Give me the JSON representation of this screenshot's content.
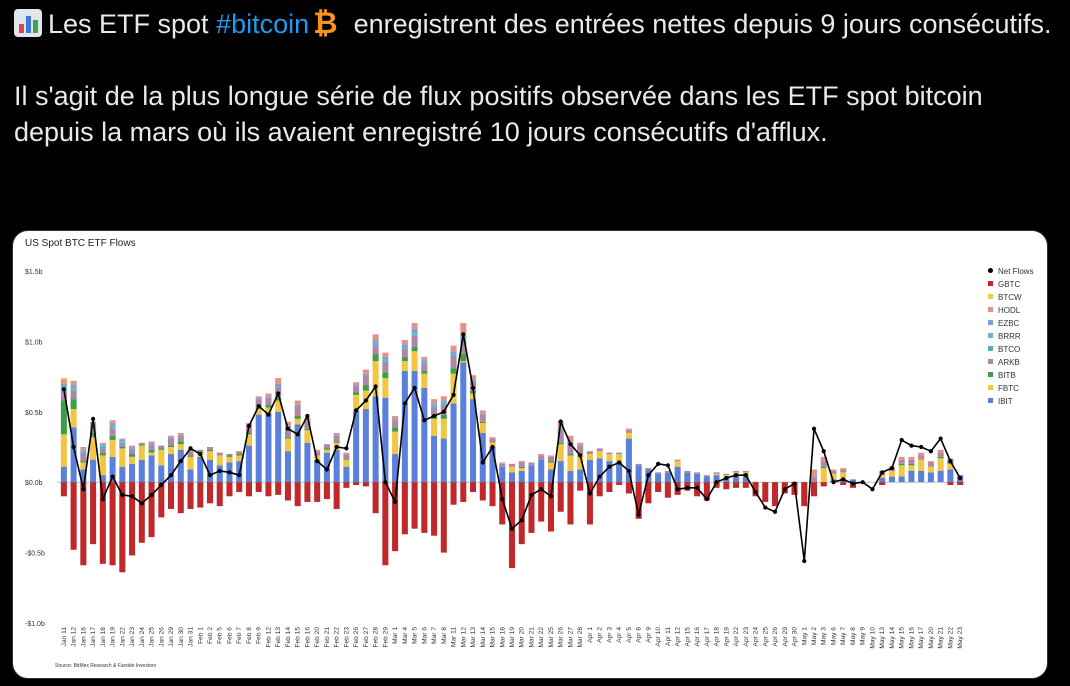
{
  "tweet": {
    "line1_a": "Les ETF spot ",
    "hashtag": "#bitcoin",
    "line1_b": "enregistrent des entrées nettes depuis 9 jours consécutifs.",
    "line2": "Il s'agit de la plus longue série de flux positifs observée dans les ETF spot bitcoin depuis la mars où ils avaient enregistré 10 jours consécutifs d'afflux.",
    "btc_glyph": "₿",
    "chart_icon": "bar-chart-emoji"
  },
  "chart_data": {
    "type": "bar",
    "title": "US Spot BTC ETF Flows",
    "source": "Source: BitMex Research & Farside Investors",
    "ylim": [
      -1.0,
      1.5
    ],
    "yticks": [
      {
        "v": 1.5,
        "label": "$1.5b"
      },
      {
        "v": 1.0,
        "label": "$1.0b"
      },
      {
        "v": 0.5,
        "label": "$0.5b"
      },
      {
        "v": 0.0,
        "label": "$0.0b"
      },
      {
        "v": -0.5,
        "label": "-$0.5b"
      },
      {
        "v": -1.0,
        "label": "-$1.0b"
      }
    ],
    "legend_position": "right",
    "grid": false,
    "colors": {
      "GBTC": "#c0282a",
      "BTCW": "#e8d04a",
      "HODL": "#e49188",
      "EZBC": "#7f9ed8",
      "BRRR": "#63b8c9",
      "BTCO": "#4eaec0",
      "ARKB": "#b086a6",
      "BITB": "#3f9e4a",
      "FBTC": "#f2c641",
      "IBIT": "#5b80dc",
      "Net": "#000000"
    },
    "legend": [
      "Net Flows",
      "GBTC",
      "BTCW",
      "HODL",
      "EZBC",
      "BRRR",
      "BTCO",
      "ARKB",
      "BITB",
      "FBTC",
      "IBIT"
    ],
    "dates": [
      "Jan 11",
      "Jan 12",
      "Jan 16",
      "Jan 17",
      "Jan 18",
      "Jan 19",
      "Jan 22",
      "Jan 23",
      "Jan 24",
      "Jan 25",
      "Jan 26",
      "Jan 29",
      "Jan 30",
      "Jan 31",
      "Feb 1",
      "Feb 2",
      "Feb 5",
      "Feb 6",
      "Feb 7",
      "Feb 8",
      "Feb 9",
      "Feb 12",
      "Feb 13",
      "Feb 14",
      "Feb 15",
      "Feb 16",
      "Feb 20",
      "Feb 21",
      "Feb 22",
      "Feb 23",
      "Feb 26",
      "Feb 27",
      "Feb 28",
      "Feb 29",
      "Mar 1",
      "Mar 4",
      "Mar 5",
      "Mar 6",
      "Mar 7",
      "Mar 8",
      "Mar 11",
      "Mar 12",
      "Mar 13",
      "Mar 14",
      "Mar 15",
      "Mar 18",
      "Mar 19",
      "Mar 20",
      "Mar 21",
      "Mar 22",
      "Mar 25",
      "Mar 26",
      "Mar 27",
      "Mar 28",
      "Apr 1",
      "Apr 2",
      "Apr 3",
      "Apr 4",
      "Apr 5",
      "Apr 8",
      "Apr 9",
      "Apr 10",
      "Apr 11",
      "Apr 12",
      "Apr 15",
      "Apr 16",
      "Apr 17",
      "Apr 18",
      "Apr 19",
      "Apr 22",
      "Apr 23",
      "Apr 24",
      "Apr 25",
      "Apr 26",
      "Apr 29",
      "Apr 30",
      "May 1",
      "May 2",
      "May 3",
      "May 6",
      "May 7",
      "May 8",
      "May 9",
      "May 10",
      "May 13",
      "May 14",
      "May 15",
      "May 16",
      "May 17",
      "May 20",
      "May 21",
      "May 22",
      "May 23"
    ],
    "series": [
      {
        "name": "IBIT",
        "values": [
          0.11,
          0.39,
          0.09,
          0.16,
          0.05,
          0.18,
          0.11,
          0.13,
          0.16,
          0.19,
          0.12,
          0.2,
          0.23,
          0.09,
          0.18,
          0.16,
          0.12,
          0.14,
          0.15,
          0.26,
          0.48,
          0.49,
          0.5,
          0.22,
          0.41,
          0.28,
          0.16,
          0.21,
          0.23,
          0.11,
          0.51,
          0.52,
          0.61,
          0.6,
          0.2,
          0.79,
          0.79,
          0.67,
          0.33,
          0.31,
          0.56,
          0.85,
          0.59,
          0.35,
          0.25,
          0.11,
          0.07,
          0.08,
          0.12,
          0.16,
          0.09,
          0.15,
          0.08,
          0.09,
          0.16,
          0.17,
          0.15,
          0.14,
          0.31,
          0.12,
          0.09,
          0.06,
          0.07,
          0.11,
          0.07,
          0.06,
          0.04,
          0.05,
          0.03,
          0.04,
          0.04,
          0.0,
          0.0,
          0.0,
          0.0,
          0.0,
          0.0,
          0.0,
          0.0,
          0.02,
          0.02,
          0.02,
          0.0,
          0.0,
          0.03,
          0.04,
          0.04,
          0.08,
          0.08,
          0.07,
          0.08,
          0.09,
          0.05
        ]
      },
      {
        "name": "FBTC",
        "values": [
          0.23,
          0.13,
          0.05,
          0.16,
          0.14,
          0.12,
          0.13,
          0.05,
          0.1,
          0.02,
          0.11,
          0.05,
          0.04,
          0.09,
          0.03,
          0.06,
          0.07,
          0.04,
          0.04,
          0.08,
          0.04,
          0.04,
          0.08,
          0.09,
          0.04,
          0.09,
          0.03,
          0.02,
          0.05,
          0.05,
          0.11,
          0.13,
          0.25,
          0.14,
          0.16,
          0.07,
          0.14,
          0.1,
          0.12,
          0.14,
          0.21,
          0.01,
          0.04,
          0.07,
          0.03,
          0.0,
          0.04,
          0.02,
          0.0,
          0.0,
          0.05,
          0.12,
          0.11,
          0.11,
          0.04,
          0.05,
          0.05,
          0.06,
          0.04,
          0.0,
          0.0,
          0.0,
          0.0,
          0.04,
          0.0,
          0.0,
          0.0,
          0.01,
          0.02,
          0.03,
          0.03,
          0.0,
          0.0,
          0.0,
          0.0,
          0.0,
          0.0,
          0.0,
          0.1,
          0.04,
          0.05,
          0.0,
          0.0,
          0.0,
          0.02,
          0.04,
          0.08,
          0.04,
          0.08,
          0.04,
          0.09,
          0.04,
          0.0
        ]
      },
      {
        "name": "BITB",
        "values": [
          0.24,
          0.07,
          0.01,
          0.03,
          0.02,
          0.03,
          0.01,
          0.02,
          0.01,
          0.02,
          0.01,
          0.01,
          0.02,
          0.01,
          0.01,
          0.01,
          0.0,
          0.01,
          0.01,
          0.01,
          0.01,
          0.02,
          0.02,
          0.01,
          0.02,
          0.01,
          0.0,
          0.01,
          0.01,
          0.01,
          0.02,
          0.04,
          0.05,
          0.04,
          0.03,
          0.03,
          0.03,
          0.02,
          0.02,
          0.03,
          0.04,
          0.05,
          0.02,
          0.01,
          0.0,
          0.0,
          0.0,
          0.01,
          0.0,
          0.0,
          0.01,
          0.01,
          0.01,
          0.01,
          0.0,
          0.0,
          0.0,
          0.0,
          0.0,
          0.0,
          0.0,
          0.0,
          0.0,
          0.0,
          0.0,
          0.0,
          0.0,
          0.0,
          0.0,
          0.0,
          0.0,
          0.0,
          0.0,
          0.0,
          0.0,
          0.0,
          0.0,
          0.0,
          0.01,
          0.0,
          0.0,
          0.0,
          0.0,
          0.0,
          0.0,
          0.0,
          0.01,
          0.01,
          0.0,
          0.0,
          0.01,
          0.01,
          0.0
        ]
      },
      {
        "name": "ARKB",
        "values": [
          0.07,
          0.06,
          0.05,
          0.04,
          0.03,
          0.05,
          0.02,
          0.03,
          0.01,
          0.04,
          0.02,
          0.05,
          0.04,
          0.03,
          0.01,
          0.02,
          0.02,
          0.01,
          0.02,
          0.06,
          0.06,
          0.05,
          0.08,
          0.07,
          0.07,
          0.05,
          0.03,
          0.03,
          0.04,
          0.03,
          0.04,
          0.07,
          0.06,
          0.07,
          0.05,
          0.05,
          0.08,
          0.05,
          0.06,
          0.07,
          0.08,
          0.09,
          0.06,
          0.05,
          0.03,
          0.02,
          0.02,
          0.03,
          0.02,
          0.03,
          0.03,
          0.09,
          0.08,
          0.05,
          0.02,
          0.02,
          0.01,
          0.01,
          0.02,
          0.01,
          0.01,
          0.01,
          0.01,
          0.01,
          0.01,
          0.01,
          0.01,
          0.01,
          0.01,
          0.01,
          0.01,
          0.0,
          0.0,
          0.0,
          0.0,
          0.0,
          0.0,
          0.04,
          0.04,
          0.02,
          0.02,
          0.0,
          0.0,
          0.0,
          0.02,
          0.02,
          0.03,
          0.03,
          0.03,
          0.03,
          0.03,
          0.02,
          0.0
        ]
      },
      {
        "name": "BTCO",
        "values": [
          0.01,
          0.01,
          0.01,
          0.01,
          0.01,
          0.01,
          0.01,
          0.01,
          0.0,
          0.0,
          0.0,
          0.0,
          0.0,
          0.0,
          0.0,
          0.0,
          0.0,
          0.0,
          0.0,
          0.0,
          0.0,
          0.0,
          0.0,
          0.0,
          0.0,
          0.0,
          0.0,
          0.0,
          0.0,
          0.0,
          0.0,
          0.0,
          0.01,
          0.01,
          0.0,
          0.01,
          0.01,
          0.01,
          0.01,
          0.01,
          0.01,
          0.01,
          0.01,
          0.0,
          0.0,
          0.0,
          0.0,
          0.0,
          0.0,
          0.0,
          0.0,
          0.01,
          0.0,
          0.0,
          0.0,
          0.0,
          0.0,
          0.0,
          0.0,
          0.0,
          0.0,
          0.0,
          0.0,
          0.0,
          0.0,
          0.0,
          0.0,
          0.0,
          0.0,
          0.0,
          0.0,
          0.0,
          0.0,
          0.0,
          0.0,
          0.0,
          0.0,
          0.0,
          0.0,
          0.0,
          0.0,
          0.0,
          0.0,
          0.0,
          0.0,
          0.0,
          0.0,
          0.0,
          0.0,
          0.0,
          0.0,
          0.0,
          0.0
        ]
      },
      {
        "name": "BRRR",
        "values": [
          0.02,
          0.01,
          0.01,
          0.01,
          0.01,
          0.01,
          0.01,
          0.0,
          0.0,
          0.0,
          0.0,
          0.0,
          0.0,
          0.0,
          0.0,
          0.0,
          0.0,
          0.0,
          0.0,
          0.0,
          0.0,
          0.0,
          0.0,
          0.0,
          0.0,
          0.0,
          0.0,
          0.0,
          0.0,
          0.0,
          0.0,
          0.0,
          0.01,
          0.01,
          0.0,
          0.01,
          0.01,
          0.01,
          0.01,
          0.01,
          0.01,
          0.01,
          0.0,
          0.0,
          0.0,
          0.0,
          0.0,
          0.0,
          0.0,
          0.0,
          0.0,
          0.0,
          0.0,
          0.0,
          0.0,
          0.0,
          0.0,
          0.0,
          0.0,
          0.0,
          0.0,
          0.0,
          0.0,
          0.0,
          0.0,
          0.0,
          0.0,
          0.0,
          0.0,
          0.0,
          0.0,
          0.0,
          0.0,
          0.0,
          0.0,
          0.0,
          0.0,
          0.0,
          0.0,
          0.0,
          0.0,
          0.0,
          0.0,
          0.0,
          0.0,
          0.0,
          0.0,
          0.0,
          0.0,
          0.0,
          0.0,
          0.0,
          0.0
        ]
      },
      {
        "name": "EZBC",
        "values": [
          0.02,
          0.02,
          0.01,
          0.01,
          0.01,
          0.02,
          0.01,
          0.01,
          0.0,
          0.01,
          0.0,
          0.01,
          0.01,
          0.0,
          0.0,
          0.0,
          0.0,
          0.0,
          0.0,
          0.0,
          0.01,
          0.01,
          0.02,
          0.01,
          0.01,
          0.01,
          0.0,
          0.0,
          0.01,
          0.0,
          0.01,
          0.01,
          0.02,
          0.02,
          0.01,
          0.02,
          0.03,
          0.01,
          0.01,
          0.01,
          0.02,
          0.02,
          0.01,
          0.01,
          0.0,
          0.0,
          0.0,
          0.0,
          0.0,
          0.0,
          0.0,
          0.01,
          0.01,
          0.0,
          0.0,
          0.0,
          0.0,
          0.0,
          0.0,
          0.0,
          0.0,
          0.0,
          0.0,
          0.0,
          0.0,
          0.0,
          0.0,
          0.0,
          0.0,
          0.0,
          0.0,
          0.0,
          0.0,
          0.0,
          0.0,
          0.0,
          0.0,
          0.0,
          0.0,
          0.0,
          0.0,
          0.0,
          0.0,
          0.0,
          0.0,
          0.0,
          0.0,
          0.0,
          0.0,
          0.0,
          0.0,
          0.0,
          0.0
        ]
      },
      {
        "name": "HODL",
        "values": [
          0.03,
          0.03,
          0.02,
          0.01,
          0.01,
          0.02,
          0.01,
          0.01,
          0.0,
          0.01,
          0.0,
          0.01,
          0.01,
          0.01,
          0.0,
          0.0,
          0.0,
          0.0,
          0.0,
          0.01,
          0.01,
          0.02,
          0.04,
          0.03,
          0.03,
          0.02,
          0.01,
          0.0,
          0.01,
          0.01,
          0.02,
          0.03,
          0.04,
          0.03,
          0.02,
          0.03,
          0.04,
          0.02,
          0.03,
          0.03,
          0.04,
          0.09,
          0.03,
          0.02,
          0.01,
          0.01,
          0.0,
          0.01,
          0.0,
          0.01,
          0.01,
          0.04,
          0.04,
          0.02,
          0.0,
          0.0,
          0.0,
          0.0,
          0.01,
          0.0,
          0.0,
          0.0,
          0.0,
          0.0,
          0.0,
          0.0,
          0.0,
          0.0,
          0.0,
          0.0,
          0.0,
          0.0,
          0.0,
          0.0,
          0.0,
          0.0,
          0.0,
          0.05,
          0.03,
          0.01,
          0.01,
          0.0,
          0.0,
          0.0,
          0.01,
          0.01,
          0.02,
          0.02,
          0.02,
          0.01,
          0.02,
          0.01,
          0.0
        ]
      },
      {
        "name": "BTCW",
        "values": [
          0.01,
          0.0,
          0.0,
          0.0,
          0.0,
          0.0,
          0.0,
          0.0,
          0.0,
          0.0,
          0.0,
          0.0,
          0.0,
          0.0,
          0.0,
          0.0,
          0.0,
          0.0,
          0.0,
          0.0,
          0.0,
          0.0,
          0.0,
          0.0,
          0.0,
          0.0,
          0.0,
          0.0,
          0.0,
          0.0,
          0.0,
          0.0,
          0.0,
          0.0,
          0.0,
          0.0,
          0.0,
          0.0,
          0.0,
          0.0,
          0.0,
          0.0,
          0.0,
          0.0,
          0.0,
          0.0,
          0.0,
          0.0,
          0.0,
          0.0,
          0.0,
          0.0,
          0.0,
          0.0,
          0.0,
          0.0,
          0.0,
          0.0,
          0.0,
          0.0,
          0.0,
          0.0,
          0.0,
          0.0,
          0.0,
          0.0,
          0.0,
          0.0,
          0.0,
          0.0,
          0.0,
          0.0,
          0.0,
          0.0,
          0.0,
          0.0,
          0.0,
          0.0,
          0.0,
          0.0,
          0.0,
          0.0,
          0.0,
          0.0,
          0.0,
          0.0,
          0.0,
          0.0,
          0.0,
          0.0,
          0.0,
          0.0,
          0.0
        ]
      },
      {
        "name": "GBTC",
        "values": [
          -0.1,
          -0.48,
          -0.59,
          -0.44,
          -0.58,
          -0.59,
          -0.64,
          -0.52,
          -0.43,
          -0.39,
          -0.25,
          -0.19,
          -0.22,
          -0.19,
          -0.18,
          -0.15,
          -0.17,
          -0.1,
          -0.07,
          -0.1,
          -0.07,
          -0.1,
          -0.09,
          -0.13,
          -0.17,
          -0.14,
          -0.14,
          -0.12,
          -0.19,
          -0.04,
          -0.02,
          -0.03,
          -0.22,
          -0.59,
          -0.49,
          -0.37,
          -0.33,
          -0.36,
          -0.38,
          -0.5,
          -0.16,
          -0.14,
          -0.07,
          -0.13,
          -0.17,
          -0.3,
          -0.61,
          -0.44,
          -0.36,
          -0.28,
          -0.35,
          -0.21,
          -0.3,
          -0.06,
          -0.3,
          -0.1,
          -0.07,
          -0.02,
          -0.08,
          -0.26,
          -0.15,
          -0.07,
          -0.11,
          -0.09,
          -0.06,
          -0.1,
          -0.13,
          -0.04,
          -0.05,
          -0.04,
          -0.04,
          -0.1,
          -0.14,
          -0.17,
          -0.08,
          -0.09,
          -0.17,
          -0.1,
          -0.03,
          0.0,
          -0.02,
          -0.04,
          0.0,
          0.0,
          -0.02,
          0.0,
          0.0,
          0.0,
          0.0,
          0.0,
          0.0,
          -0.02,
          -0.02
        ]
      },
      {
        "name": "Net Flows",
        "values": [
          0.66,
          0.25,
          -0.05,
          0.45,
          -0.12,
          0.04,
          -0.09,
          -0.1,
          -0.15,
          -0.09,
          -0.02,
          0.05,
          0.15,
          0.24,
          0.2,
          0.05,
          0.08,
          0.07,
          0.05,
          0.4,
          0.54,
          0.48,
          0.63,
          0.38,
          0.34,
          0.47,
          0.15,
          0.09,
          0.25,
          0.24,
          0.51,
          0.58,
          0.68,
          0.0,
          -0.14,
          0.56,
          0.67,
          0.44,
          0.47,
          0.5,
          0.62,
          1.05,
          0.67,
          0.14,
          0.25,
          -0.12,
          -0.33,
          -0.27,
          -0.09,
          -0.05,
          -0.1,
          0.43,
          0.27,
          0.19,
          -0.08,
          0.04,
          0.11,
          0.14,
          0.08,
          -0.23,
          0.05,
          0.13,
          0.12,
          -0.05,
          -0.04,
          -0.04,
          -0.12,
          0.0,
          0.03,
          0.05,
          0.05,
          -0.07,
          -0.18,
          -0.21,
          -0.05,
          -0.01,
          -0.56,
          0.38,
          0.22,
          0.0,
          0.02,
          -0.01,
          0.0,
          -0.05,
          0.07,
          0.1,
          0.3,
          0.26,
          0.25,
          0.22,
          0.31,
          0.15,
          0.03
        ]
      }
    ]
  }
}
